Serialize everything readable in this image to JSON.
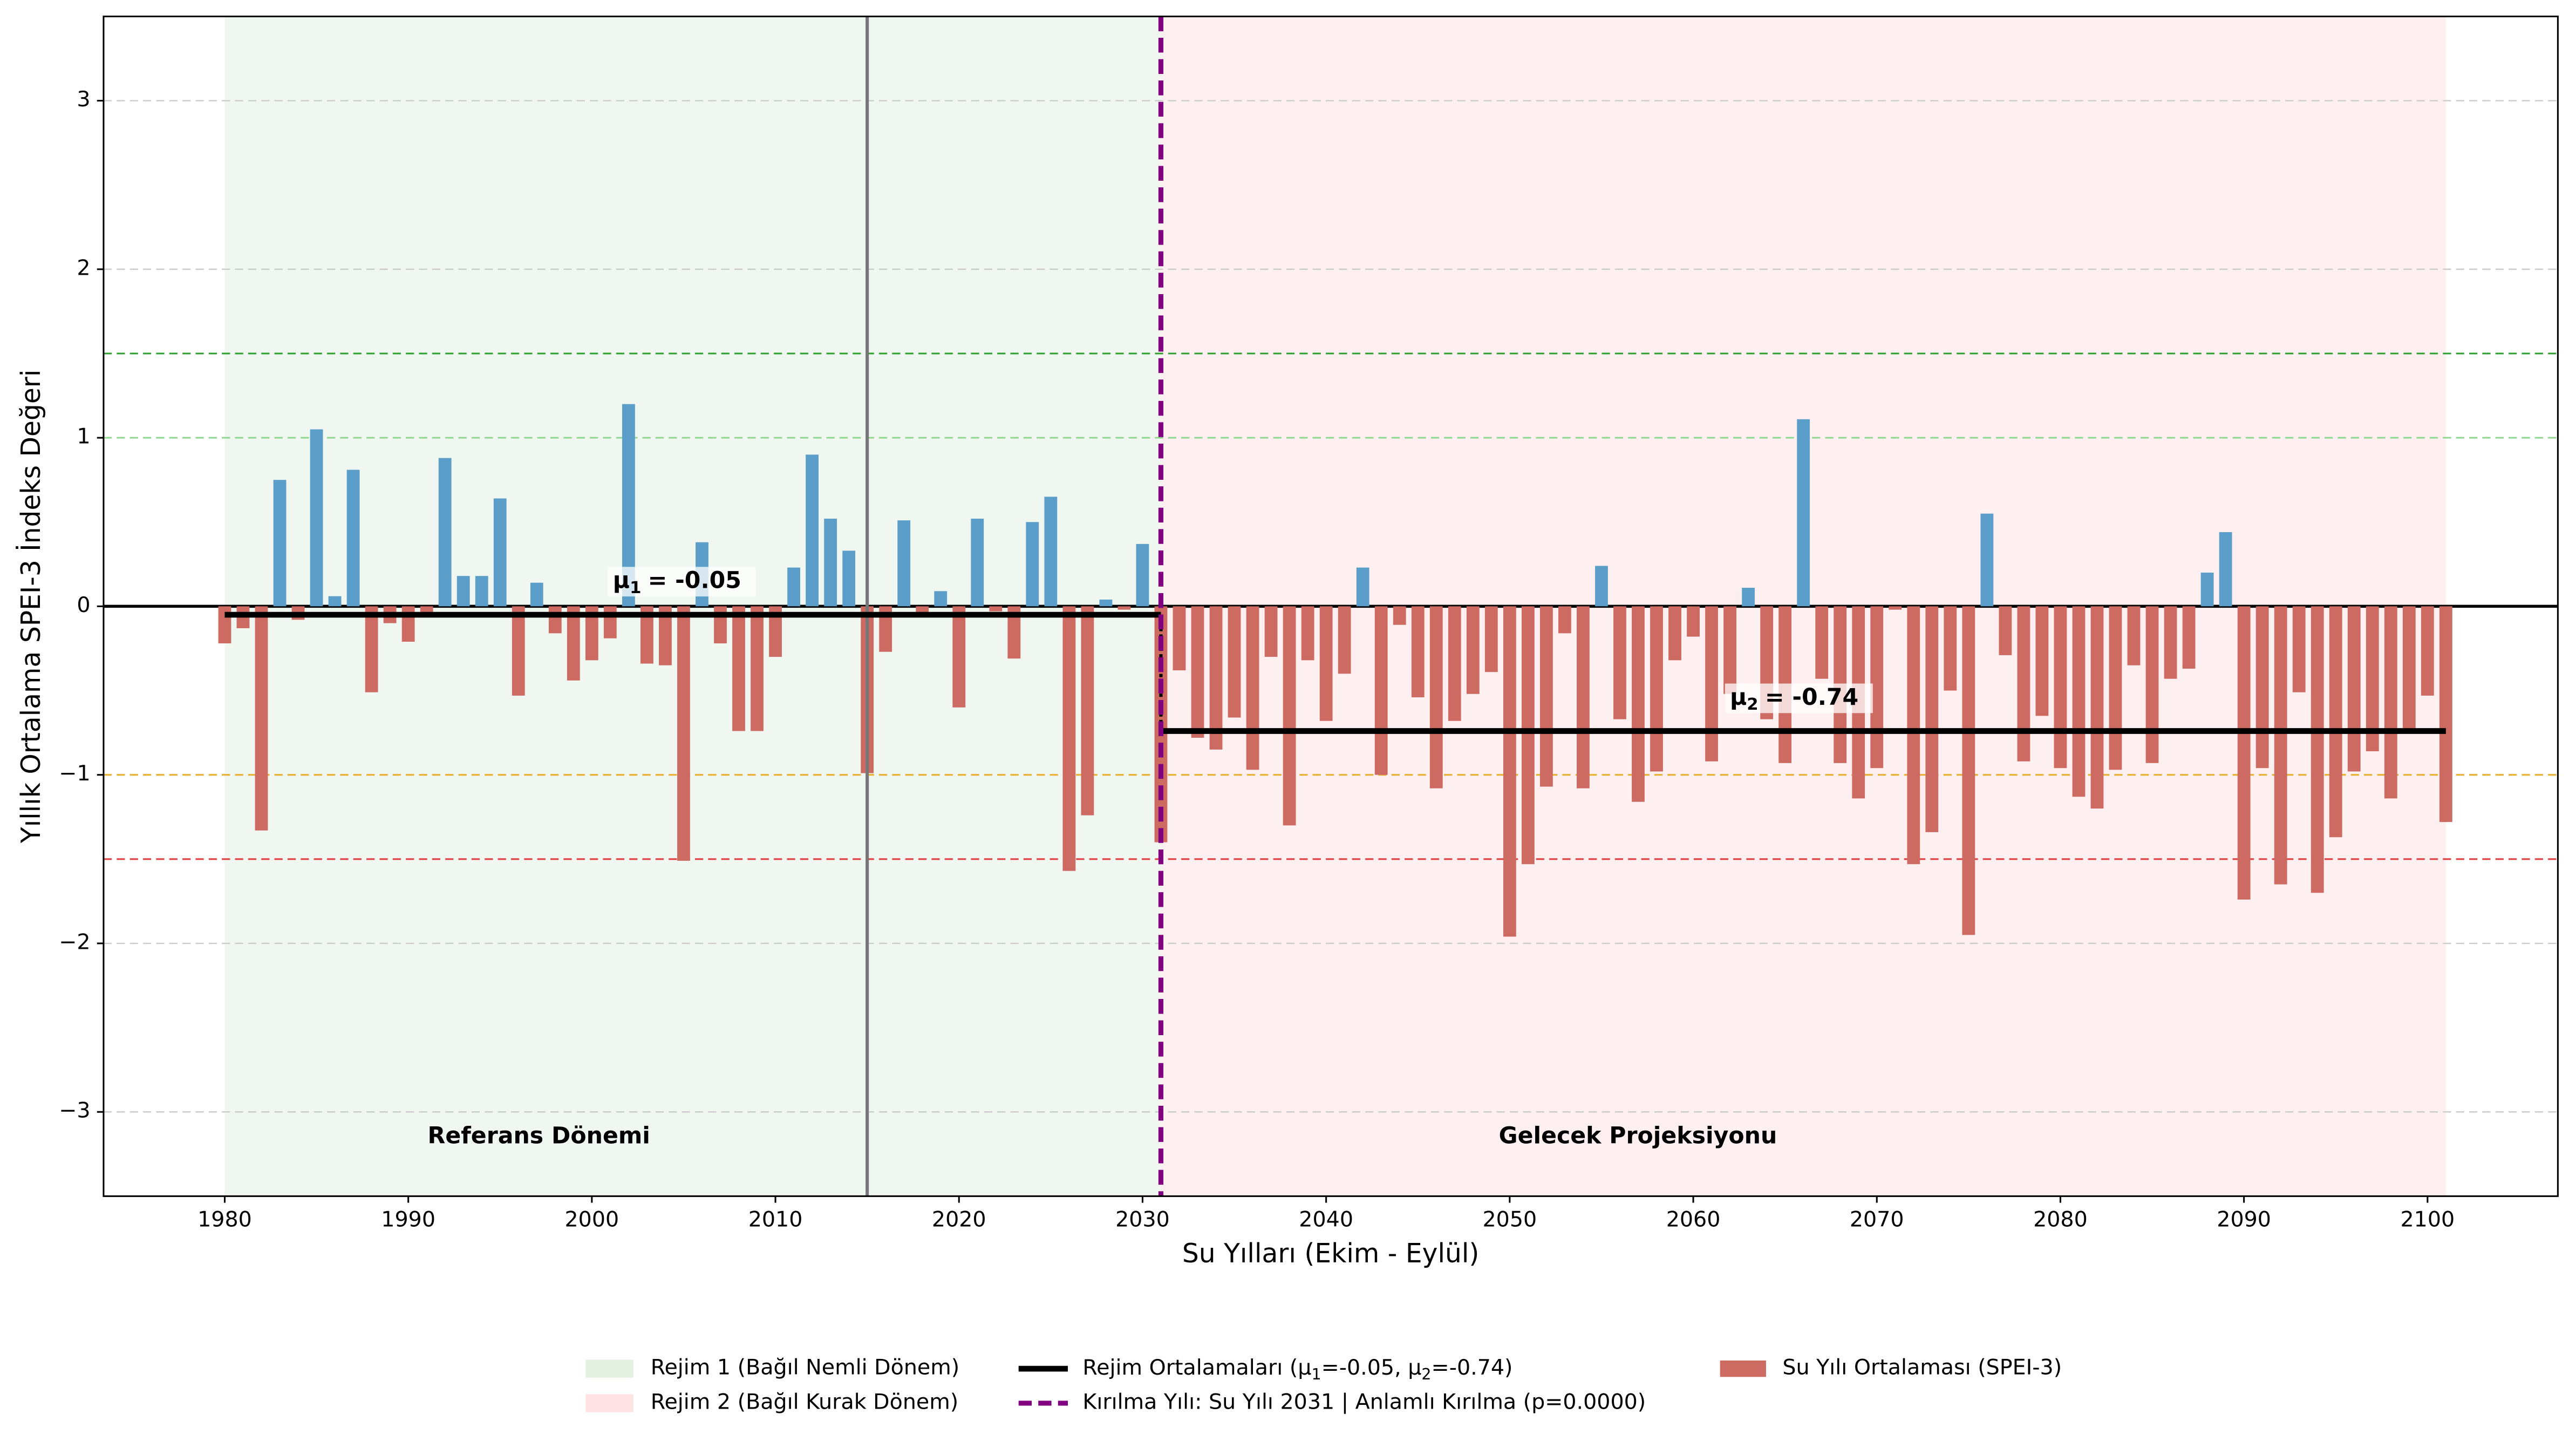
{
  "chart_data": {
    "type": "bar",
    "xlabel": "Su Yılları (Ekim - Eylül)",
    "ylabel": "Yıllık Ortalama SPEI-3 İndeks Değeri",
    "x": [
      1980,
      1981,
      1982,
      1983,
      1984,
      1985,
      1986,
      1987,
      1988,
      1989,
      1990,
      1991,
      1992,
      1993,
      1994,
      1995,
      1996,
      1997,
      1998,
      1999,
      2000,
      2001,
      2002,
      2003,
      2004,
      2005,
      2006,
      2007,
      2008,
      2009,
      2010,
      2011,
      2012,
      2013,
      2014,
      2015,
      2016,
      2017,
      2018,
      2019,
      2020,
      2021,
      2022,
      2023,
      2024,
      2025,
      2026,
      2027,
      2028,
      2029,
      2030,
      2031,
      2032,
      2033,
      2034,
      2035,
      2036,
      2037,
      2038,
      2039,
      2040,
      2041,
      2042,
      2043,
      2044,
      2045,
      2046,
      2047,
      2048,
      2049,
      2050,
      2051,
      2052,
      2053,
      2054,
      2055,
      2056,
      2057,
      2058,
      2059,
      2060,
      2061,
      2062,
      2063,
      2064,
      2065,
      2066,
      2067,
      2068,
      2069,
      2070,
      2071,
      2072,
      2073,
      2074,
      2075,
      2076,
      2077,
      2078,
      2079,
      2080,
      2081,
      2082,
      2083,
      2084,
      2085,
      2086,
      2087,
      2088,
      2089,
      2090,
      2091,
      2092,
      2093,
      2094,
      2095,
      2096,
      2097,
      2098,
      2099,
      2100,
      2101
    ],
    "series": [
      {
        "name": "Su Yılı Ortalaması (SPEI-3)",
        "color": "#cd6a62",
        "positive_color": "#5b9ec9",
        "values": [
          -0.22,
          -0.13,
          -1.33,
          0.75,
          -0.08,
          1.05,
          0.06,
          0.81,
          -0.51,
          -0.1,
          -0.21,
          -0.05,
          0.88,
          0.18,
          0.18,
          0.64,
          -0.53,
          0.14,
          -0.16,
          -0.44,
          -0.32,
          -0.19,
          1.2,
          -0.34,
          -0.35,
          -1.51,
          0.38,
          -0.22,
          -0.74,
          -0.74,
          -0.3,
          0.23,
          0.9,
          0.52,
          0.33,
          -0.99,
          -0.27,
          0.51,
          -0.05,
          0.09,
          -0.6,
          0.52,
          -0.03,
          -0.31,
          0.5,
          0.65,
          -1.57,
          -1.24,
          0.04,
          -0.02,
          0.37,
          -1.4,
          -0.38,
          -0.78,
          -0.85,
          -0.66,
          -0.97,
          -0.3,
          -1.3,
          -0.32,
          -0.68,
          -0.4,
          0.23,
          -1.0,
          -0.11,
          -0.54,
          -1.08,
          -0.68,
          -0.52,
          -0.39,
          -1.96,
          -1.53,
          -1.07,
          -0.16,
          -1.08,
          0.24,
          -0.67,
          -1.16,
          -0.98,
          -0.32,
          -0.18,
          -0.92,
          -0.52,
          0.11,
          -0.67,
          -0.93,
          1.11,
          -0.43,
          -0.93,
          -1.14,
          -0.96,
          -0.02,
          -1.53,
          -1.34,
          -0.5,
          -1.95,
          0.55,
          -0.29,
          -0.92,
          -0.65,
          -0.96,
          -1.13,
          -1.2,
          -0.97,
          -0.35,
          -0.93,
          -0.43,
          -0.37,
          0.2,
          0.44,
          -1.74,
          -0.96,
          -1.65,
          -0.51,
          -1.7,
          -1.37,
          -0.98,
          -0.86,
          -1.14,
          -0.75,
          -0.53,
          -1.28
        ]
      }
    ],
    "regimes": [
      {
        "name": "Rejim 1 (Bağıl Nemli Dönem)",
        "start": 1980,
        "end": 2031,
        "mean": -0.05,
        "color": "#e3f1e3",
        "mean_label": [
          "μ",
          "1",
          "= -0.05"
        ]
      },
      {
        "name": "Rejim 2 (Bağıl Kurak Dönem)",
        "start": 2031,
        "end": 2101,
        "mean": -0.74,
        "color": "#fde3e3",
        "mean_label": [
          "μ",
          "2",
          "= -0.74"
        ]
      }
    ],
    "mean_line": {
      "name": [
        "Rejim Ortalamaları (μ",
        "1",
        "=-0.05, μ",
        "2",
        "=-0.74)"
      ],
      "color": "#000000"
    },
    "break_line": {
      "name": "Kırılma Yılı: Su Yılı 2031 | Anlamlı Kırılma (p=0.0000)",
      "x": 2031,
      "color": "#800080"
    },
    "reference_end": {
      "x": 2015,
      "color": "#777777"
    },
    "reference_lines": [
      {
        "value": 1.5,
        "color": "#2ca02c"
      },
      {
        "value": 1.0,
        "color": "#90d890"
      },
      {
        "value": 0,
        "color": "#000000"
      },
      {
        "value": -1.0,
        "color": "#e8b030"
      },
      {
        "value": -1.5,
        "color": "#e04040"
      }
    ],
    "period_labels": [
      {
        "text": "Referans Dönemi",
        "color": "#808080"
      },
      {
        "text": "Gelecek Projeksiyonu",
        "color": "#000000"
      }
    ],
    "xlim": [
      1973.4,
      2107.1
    ],
    "xticks": [
      1980,
      1990,
      2000,
      2010,
      2020,
      2030,
      2040,
      2050,
      2060,
      2070,
      2080,
      2090,
      2100
    ],
    "ylim": [
      -3.5,
      3.5
    ],
    "yticks": [
      {
        "value": -3,
        "label": "−3"
      },
      {
        "value": -2,
        "label": "−2"
      },
      {
        "value": -1,
        "label": "−1"
      },
      0,
      1,
      2,
      3
    ],
    "grid": true,
    "legend": "bottom"
  }
}
